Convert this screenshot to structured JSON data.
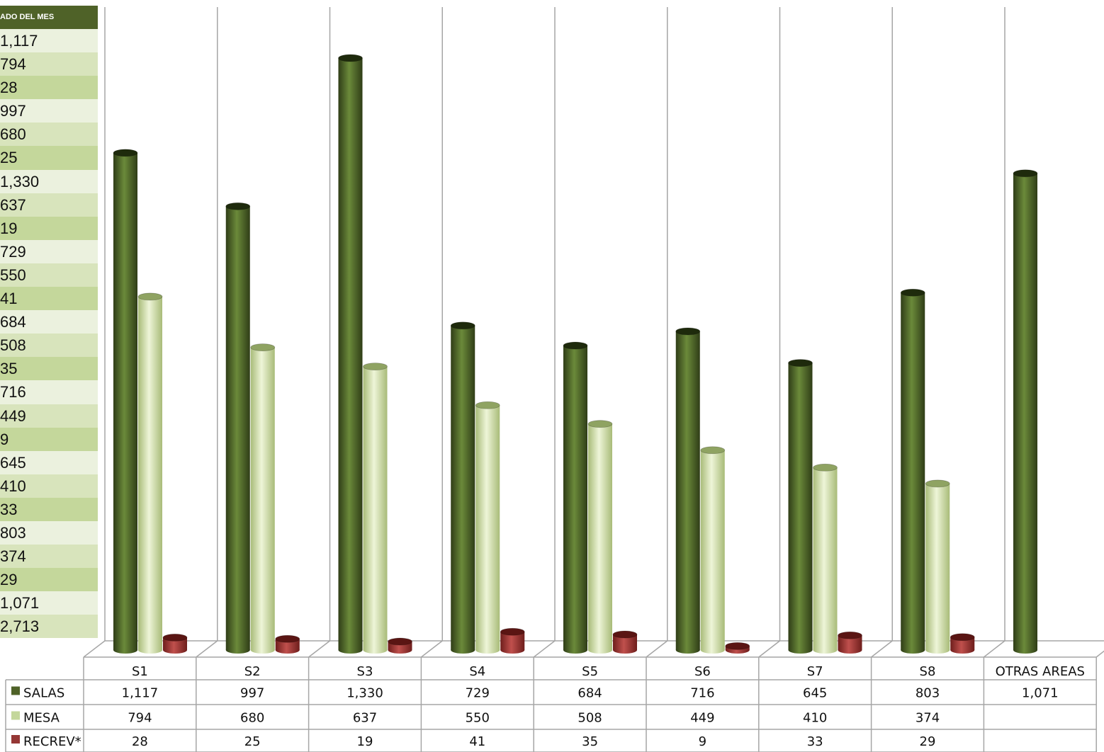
{
  "side_table": {
    "header": "ADO DEL MES",
    "rows": [
      "1,117",
      "794",
      "28",
      "997",
      "680",
      "25",
      "1,330",
      "637",
      "19",
      "729",
      "550",
      "41",
      "684",
      "508",
      "35",
      "716",
      "449",
      "9",
      "645",
      "410",
      "33",
      "803",
      "374",
      "29",
      "1,071",
      "2,713"
    ]
  },
  "chart_data": {
    "type": "bar",
    "categories": [
      "S1",
      "S2",
      "S3",
      "S4",
      "S5",
      "S6",
      "S7",
      "S8",
      "OTRAS AREAS"
    ],
    "series": [
      {
        "name": "SALAS",
        "values": [
          1117,
          997,
          1330,
          729,
          684,
          716,
          645,
          803,
          1071
        ],
        "color": "#4f6228",
        "labels": [
          "1,117",
          "997",
          "1,330",
          "729",
          "684",
          "716",
          "645",
          "803",
          "1,071"
        ]
      },
      {
        "name": "MESA",
        "values": [
          794,
          680,
          637,
          550,
          508,
          449,
          410,
          374,
          null
        ],
        "color": "#c4d79b",
        "labels": [
          "794",
          "680",
          "637",
          "550",
          "508",
          "449",
          "410",
          "374",
          ""
        ]
      },
      {
        "name": "RECREV*",
        "values": [
          28,
          25,
          19,
          41,
          35,
          9,
          33,
          29,
          null
        ],
        "color": "#953735",
        "labels": [
          "28",
          "25",
          "19",
          "41",
          "35",
          "9",
          "33",
          "29",
          ""
        ]
      }
    ],
    "ylim": [
      0,
      1400
    ],
    "grid": true,
    "legend": "data-table",
    "title": "",
    "xlabel": "",
    "ylabel": ""
  }
}
